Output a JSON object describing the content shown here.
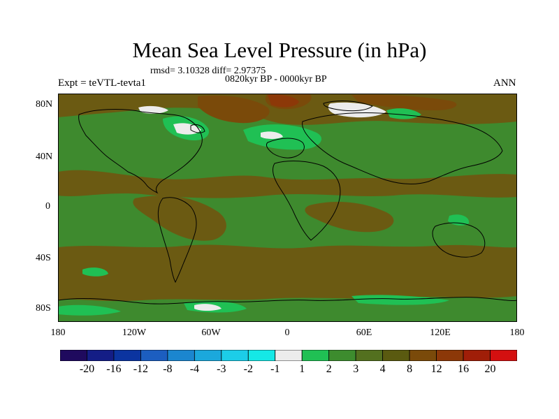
{
  "title": "Mean Sea Level Pressure (in hPa)",
  "stats": "rmsd= 3.10328 diff= 2.97375",
  "period": "0820kyr BP - 0000kyr BP",
  "experiment": "Expt = teVTL-tevta1",
  "season": "ANN",
  "lat_labels": [
    "80N",
    "40N",
    "0",
    "40S",
    "80S"
  ],
  "lon_labels": [
    "180",
    "120W",
    "60W",
    "0",
    "60E",
    "120E",
    "180"
  ],
  "colorbar": {
    "colors": [
      "#1f0a5e",
      "#141d86",
      "#0b34a0",
      "#1c5ec0",
      "#1b86cf",
      "#1ba8dc",
      "#1ccde8",
      "#15e8e6",
      "#ececec",
      "#20c054",
      "#3d8c2e",
      "#53701f",
      "#5a5a10",
      "#7a4a0a",
      "#8c3808",
      "#a01e08",
      "#d41010"
    ],
    "labels": [
      "-20",
      "-16",
      "-12",
      "-8",
      "-4",
      "-3",
      "-2",
      "-1",
      "1",
      "2",
      "3",
      "4",
      "8",
      "12",
      "16",
      "20"
    ]
  },
  "palette": {
    "base": "#3e8a2e",
    "brown": "#6b5a12",
    "dark_brown": "#7a4a0a",
    "red_brown": "#8c3808",
    "light_green": "#20c054",
    "white": "#ececec"
  }
}
